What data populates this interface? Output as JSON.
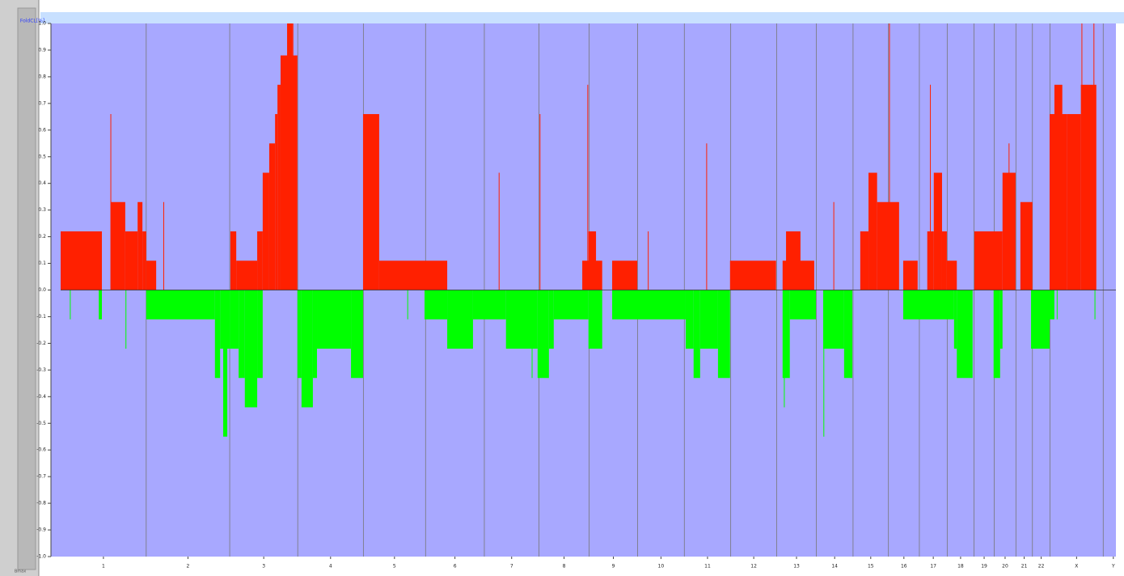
{
  "chart_data": {
    "type": "segments",
    "y_label": "FoldCL[%]",
    "corner_label": "Bmax",
    "ylim": [
      -1,
      1
    ],
    "yticks": [
      {
        "value": 1,
        "label": "1.0"
      },
      0.9,
      0.8,
      0.7,
      0.6,
      0.5,
      0.4,
      0.3,
      0.2,
      0.1,
      {
        "value": 0,
        "label": "0.0"
      },
      -0.1,
      -0.2,
      -0.3,
      -0.4,
      -0.5,
      -0.6,
      -0.7,
      -0.8,
      -0.9,
      {
        "value": -1,
        "label": "-1.0"
      }
    ],
    "xlim": [
      0,
      3071
    ],
    "chromosomes": [
      "1",
      "2",
      "3",
      "4",
      "5",
      "6",
      "7",
      "8",
      "9",
      "10",
      "11",
      "12",
      "13",
      "14",
      "15",
      "16",
      "17",
      "18",
      "19",
      "20",
      "21",
      "22",
      "X",
      "Y"
    ],
    "chromosome_starts": [
      0,
      249,
      492,
      690,
      881,
      1062,
      1233,
      1392,
      1538,
      1679,
      1815,
      1950,
      2084,
      2199,
      2306,
      2409,
      2499,
      2580,
      2658,
      2717,
      2780,
      2828,
      2879,
      3034
    ],
    "genome_end": 3093,
    "background": "#a8a8ff",
    "series": [
      {
        "color": "#ff2000",
        "start": [
          0,
          146,
          188,
          224,
          238,
          249,
          494,
          511,
          572,
          588,
          607,
          624,
          631,
          640,
          659,
          880,
          927,
          1518,
          1536,
          1605,
          1948,
          2101,
          2111,
          2327,
          2351,
          2376,
          2405,
          2452,
          2522,
          2541,
          2565,
          2579,
          2659,
          2741,
          2793,
          2878,
          2892,
          2929,
          2969
        ],
        "end": [
          120,
          188,
          224,
          238,
          249,
          278,
          511,
          572,
          588,
          607,
          624,
          631,
          640,
          689,
          675,
          927,
          1125,
          1576,
          1558,
          1678,
          2082,
          2193,
          2153,
          2351,
          2376,
          2405,
          2440,
          2494,
          2541,
          2565,
          2579,
          2608,
          2741,
          2779,
          2828,
          2929,
          2915,
          2969,
          3014
        ],
        "values": [
          0.22,
          0.33,
          0.22,
          0.33,
          0.22,
          0.11,
          0.22,
          0.11,
          0.22,
          0.44,
          0.55,
          0.66,
          0.77,
          0.88,
          1,
          0.66,
          0.11,
          0.11,
          0.22,
          0.11,
          0.11,
          0.11,
          0.22,
          0.22,
          0.44,
          0.33,
          0.33,
          0.11,
          0.22,
          0.44,
          0.22,
          0.11,
          0.22,
          0.44,
          0.33,
          0.66,
          0.77,
          0.66,
          0.77
        ]
      },
      {
        "color": "#00ff00",
        "start": [
          111,
          249,
          449,
          464,
          473,
          494,
          518,
          536,
          572,
          689,
          701,
          734,
          746,
          845,
          1059,
          1125,
          1200,
          1296,
          1388,
          1421,
          1435,
          1536,
          1605,
          1819,
          1842,
          1861,
          1913,
          2101,
          2122,
          2219,
          2280,
          2452,
          2600,
          2608,
          2715,
          2734,
          2824,
          2878
        ],
        "end": [
          120,
          449,
          464,
          494,
          485,
          518,
          536,
          572,
          588,
          701,
          734,
          746,
          845,
          880,
          1125,
          1200,
          1296,
          1388,
          1421,
          1435,
          1536,
          1576,
          1819,
          1842,
          1861,
          1913,
          1948,
          2122,
          2198,
          2280,
          2304,
          2600,
          2608,
          2654,
          2734,
          2741,
          2878,
          2892
        ],
        "values": [
          -0.11,
          -0.11,
          -0.33,
          -0.22,
          -0.55,
          -0.22,
          -0.33,
          -0.44,
          -0.33,
          -0.33,
          -0.44,
          -0.33,
          -0.22,
          -0.33,
          -0.11,
          -0.22,
          -0.11,
          -0.22,
          -0.33,
          -0.22,
          -0.11,
          -0.22,
          -0.11,
          -0.22,
          -0.33,
          -0.22,
          -0.33,
          -0.33,
          -0.11,
          -0.22,
          -0.33,
          -0.11,
          -0.22,
          -0.33,
          -0.33,
          -0.22,
          -0.22,
          -0.11
        ]
      }
    ],
    "spikes": [
      {
        "color": "#ff2000",
        "x": [
          146,
          676,
          1276,
          1395,
          1534,
          1880,
          2412,
          2531,
          2760,
          2972,
          3007,
          300,
          1710,
          2250
        ],
        "values": [
          0.66,
          1,
          0.44,
          0.66,
          0.77,
          0.55,
          1,
          0.77,
          0.55,
          1,
          1,
          0.33,
          0.22,
          0.33
        ]
      },
      {
        "color": "#00ff00",
        "x": [
          28,
          2221,
          2106,
          1372,
          720,
          190,
          1010,
          2260,
          2900,
          3010
        ],
        "values": [
          -0.11,
          -0.55,
          -0.44,
          -0.33,
          -0.11,
          -0.22,
          -0.11,
          -0.11,
          -0.11,
          -0.11
        ]
      }
    ]
  }
}
